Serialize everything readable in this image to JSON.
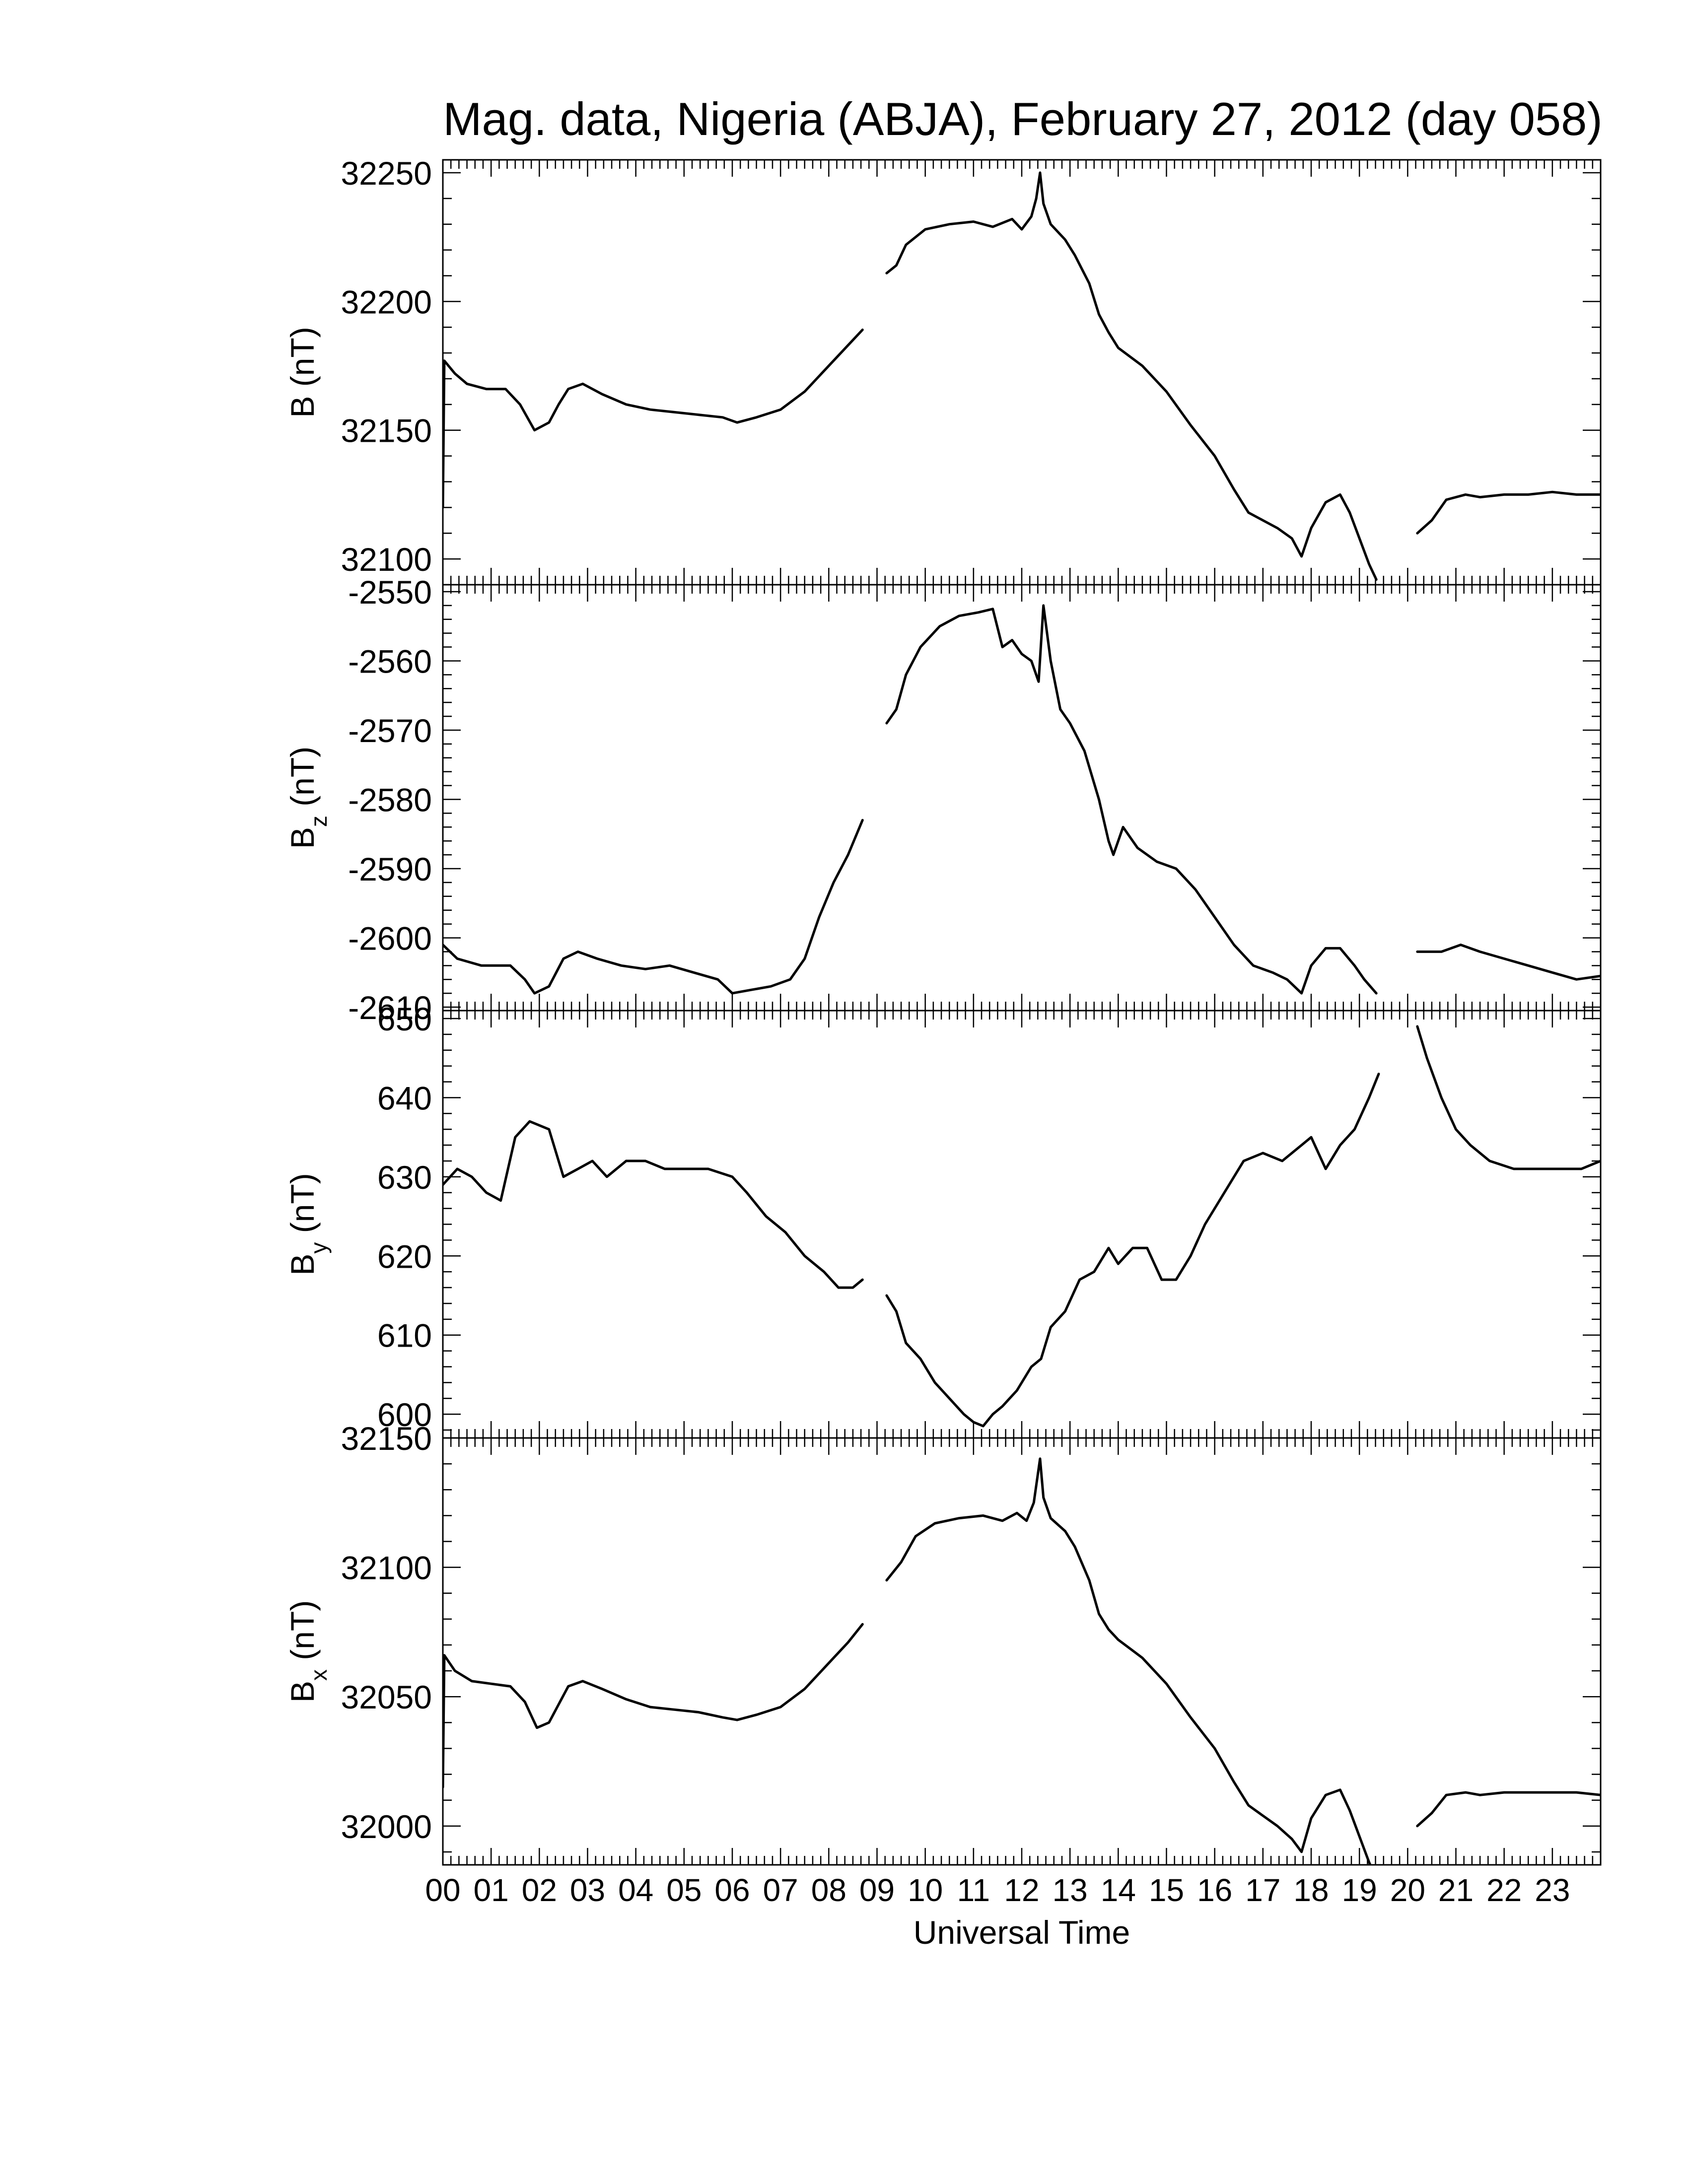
{
  "title": "Mag. data, Nigeria (ABJA), February 27, 2012 (day 058)",
  "xlabel": "Universal Time",
  "x_tick_labels": [
    "00",
    "01",
    "02",
    "03",
    "04",
    "05",
    "06",
    "07",
    "08",
    "09",
    "10",
    "11",
    "12",
    "13",
    "14",
    "15",
    "16",
    "17",
    "18",
    "19",
    "20",
    "21",
    "22",
    "23"
  ],
  "colors": {
    "line": "#000000",
    "axes": "#000000",
    "background": "#ffffff"
  },
  "chart_data": [
    {
      "type": "line",
      "panel": "B",
      "ylabel": "B (nT)",
      "ylabel_main": "B",
      "ylabel_sub": "",
      "ylabel_unit": " (nT)",
      "xlim": [
        0,
        24
      ],
      "ylim": [
        32090,
        32255
      ],
      "yticks": [
        32100,
        32150,
        32200,
        32250
      ],
      "segments": [
        [
          [
            0.0,
            32120
          ],
          [
            0.03,
            32177
          ],
          [
            0.25,
            32172
          ],
          [
            0.5,
            32168
          ],
          [
            0.9,
            32166
          ],
          [
            1.3,
            32166
          ],
          [
            1.6,
            32160
          ],
          [
            1.9,
            32150
          ],
          [
            2.2,
            32153
          ],
          [
            2.4,
            32160
          ],
          [
            2.6,
            32166
          ],
          [
            2.9,
            32168
          ],
          [
            3.3,
            32164
          ],
          [
            3.8,
            32160
          ],
          [
            4.3,
            32158
          ],
          [
            4.8,
            32157
          ],
          [
            5.3,
            32156
          ],
          [
            5.8,
            32155
          ],
          [
            6.1,
            32153
          ],
          [
            6.5,
            32155
          ],
          [
            7.0,
            32158
          ],
          [
            7.5,
            32165
          ],
          [
            8.0,
            32175
          ],
          [
            8.4,
            32183
          ],
          [
            8.7,
            32189
          ]
        ],
        [
          [
            9.2,
            32211
          ],
          [
            9.4,
            32214
          ],
          [
            9.6,
            32222
          ],
          [
            10.0,
            32228
          ],
          [
            10.5,
            32230
          ],
          [
            11.0,
            32231
          ],
          [
            11.4,
            32229
          ],
          [
            11.8,
            32232
          ],
          [
            12.0,
            32228
          ],
          [
            12.2,
            32233
          ],
          [
            12.3,
            32240
          ],
          [
            12.38,
            32250
          ],
          [
            12.45,
            32238
          ],
          [
            12.6,
            32230
          ],
          [
            12.9,
            32224
          ],
          [
            13.1,
            32218
          ],
          [
            13.4,
            32207
          ],
          [
            13.6,
            32195
          ],
          [
            13.8,
            32188
          ],
          [
            14.0,
            32182
          ],
          [
            14.5,
            32175
          ],
          [
            15.0,
            32165
          ],
          [
            15.5,
            32152
          ],
          [
            16.0,
            32140
          ],
          [
            16.4,
            32127
          ],
          [
            16.7,
            32118
          ],
          [
            17.0,
            32115
          ],
          [
            17.3,
            32112
          ],
          [
            17.6,
            32108
          ],
          [
            17.8,
            32101
          ],
          [
            18.0,
            32112
          ],
          [
            18.3,
            32122
          ],
          [
            18.6,
            32125
          ],
          [
            18.8,
            32118
          ],
          [
            19.0,
            32108
          ],
          [
            19.2,
            32098
          ],
          [
            19.35,
            32092
          ]
        ],
        [
          [
            20.2,
            32110
          ],
          [
            20.5,
            32115
          ],
          [
            20.8,
            32123
          ],
          [
            21.2,
            32125
          ],
          [
            21.5,
            32124
          ],
          [
            22.0,
            32125
          ],
          [
            22.5,
            32125
          ],
          [
            23.0,
            32126
          ],
          [
            23.5,
            32125
          ],
          [
            24.0,
            32125
          ]
        ]
      ]
    },
    {
      "type": "line",
      "panel": "Bz",
      "ylabel": "Bz (nT)",
      "ylabel_main": "B",
      "ylabel_sub": "z",
      "ylabel_unit": " (nT)",
      "xlim": [
        0,
        24
      ],
      "ylim": [
        -2610.5,
        -2549
      ],
      "yticks": [
        -2610,
        -2600,
        -2590,
        -2580,
        -2570,
        -2560,
        -2550
      ],
      "segments": [
        [
          [
            0.0,
            -2601
          ],
          [
            0.3,
            -2603
          ],
          [
            0.8,
            -2604
          ],
          [
            1.4,
            -2604
          ],
          [
            1.7,
            -2606
          ],
          [
            1.9,
            -2608
          ],
          [
            2.2,
            -2607
          ],
          [
            2.5,
            -2603
          ],
          [
            2.8,
            -2602
          ],
          [
            3.2,
            -2603
          ],
          [
            3.7,
            -2604
          ],
          [
            4.2,
            -2604.5
          ],
          [
            4.7,
            -2604
          ],
          [
            5.2,
            -2605
          ],
          [
            5.7,
            -2606
          ],
          [
            6.0,
            -2608
          ],
          [
            6.4,
            -2607.5
          ],
          [
            6.8,
            -2607
          ],
          [
            7.2,
            -2606
          ],
          [
            7.5,
            -2603
          ],
          [
            7.8,
            -2597
          ],
          [
            8.1,
            -2592
          ],
          [
            8.4,
            -2588
          ],
          [
            8.7,
            -2583
          ]
        ],
        [
          [
            9.2,
            -2569
          ],
          [
            9.4,
            -2567
          ],
          [
            9.6,
            -2562
          ],
          [
            9.9,
            -2558
          ],
          [
            10.3,
            -2555
          ],
          [
            10.7,
            -2553.5
          ],
          [
            11.1,
            -2553
          ],
          [
            11.4,
            -2552.5
          ],
          [
            11.6,
            -2558
          ],
          [
            11.8,
            -2557
          ],
          [
            12.0,
            -2559
          ],
          [
            12.2,
            -2560
          ],
          [
            12.35,
            -2563
          ],
          [
            12.45,
            -2552
          ],
          [
            12.6,
            -2560
          ],
          [
            12.8,
            -2567
          ],
          [
            13.0,
            -2569
          ],
          [
            13.3,
            -2573
          ],
          [
            13.6,
            -2580
          ],
          [
            13.8,
            -2586
          ],
          [
            13.9,
            -2588
          ],
          [
            14.1,
            -2584
          ],
          [
            14.4,
            -2587
          ],
          [
            14.8,
            -2589
          ],
          [
            15.2,
            -2590
          ],
          [
            15.6,
            -2593
          ],
          [
            16.0,
            -2597
          ],
          [
            16.4,
            -2601
          ],
          [
            16.8,
            -2604
          ],
          [
            17.2,
            -2605
          ],
          [
            17.5,
            -2606
          ],
          [
            17.8,
            -2608
          ],
          [
            18.0,
            -2604
          ],
          [
            18.3,
            -2601.5
          ],
          [
            18.6,
            -2601.5
          ],
          [
            18.9,
            -2604
          ],
          [
            19.1,
            -2606
          ],
          [
            19.35,
            -2608
          ]
        ],
        [
          [
            20.2,
            -2602
          ],
          [
            20.7,
            -2602
          ],
          [
            21.1,
            -2601
          ],
          [
            21.5,
            -2602
          ],
          [
            22.0,
            -2603
          ],
          [
            22.5,
            -2604
          ],
          [
            23.0,
            -2605
          ],
          [
            23.5,
            -2606
          ],
          [
            24.0,
            -2605.5
          ]
        ]
      ]
    },
    {
      "type": "line",
      "panel": "By",
      "ylabel": "By (nT)",
      "ylabel_main": "B",
      "ylabel_sub": "y",
      "ylabel_unit": " (nT)",
      "xlim": [
        0,
        24
      ],
      "ylim": [
        597,
        651
      ],
      "yticks": [
        600,
        610,
        620,
        630,
        640,
        650
      ],
      "segments": [
        [
          [
            0.0,
            629
          ],
          [
            0.3,
            631
          ],
          [
            0.6,
            630
          ],
          [
            0.9,
            628
          ],
          [
            1.2,
            627
          ],
          [
            1.5,
            635
          ],
          [
            1.8,
            637
          ],
          [
            2.2,
            636
          ],
          [
            2.5,
            630
          ],
          [
            2.8,
            631
          ],
          [
            3.1,
            632
          ],
          [
            3.4,
            630
          ],
          [
            3.8,
            632
          ],
          [
            4.2,
            632
          ],
          [
            4.6,
            631
          ],
          [
            5.0,
            631
          ],
          [
            5.5,
            631
          ],
          [
            6.0,
            630
          ],
          [
            6.3,
            628
          ],
          [
            6.7,
            625
          ],
          [
            7.1,
            623
          ],
          [
            7.5,
            620
          ],
          [
            7.9,
            618
          ],
          [
            8.2,
            616
          ],
          [
            8.5,
            616
          ],
          [
            8.7,
            617
          ]
        ],
        [
          [
            9.2,
            615
          ],
          [
            9.4,
            613
          ],
          [
            9.6,
            609
          ],
          [
            9.9,
            607
          ],
          [
            10.2,
            604
          ],
          [
            10.5,
            602
          ],
          [
            10.8,
            600
          ],
          [
            11.0,
            599
          ],
          [
            11.2,
            598.5
          ],
          [
            11.4,
            600
          ],
          [
            11.6,
            601
          ],
          [
            11.9,
            603
          ],
          [
            12.2,
            606
          ],
          [
            12.4,
            607
          ],
          [
            12.6,
            611
          ],
          [
            12.9,
            613
          ],
          [
            13.2,
            617
          ],
          [
            13.5,
            618
          ],
          [
            13.8,
            621
          ],
          [
            14.0,
            619
          ],
          [
            14.3,
            621
          ],
          [
            14.6,
            621
          ],
          [
            14.9,
            617
          ],
          [
            15.2,
            617
          ],
          [
            15.5,
            620
          ],
          [
            15.8,
            624
          ],
          [
            16.2,
            628
          ],
          [
            16.6,
            632
          ],
          [
            17.0,
            633
          ],
          [
            17.4,
            632
          ],
          [
            17.8,
            634
          ],
          [
            18.0,
            635
          ],
          [
            18.3,
            631
          ],
          [
            18.6,
            634
          ],
          [
            18.9,
            636
          ],
          [
            19.2,
            640
          ],
          [
            19.4,
            643
          ]
        ],
        [
          [
            20.2,
            649
          ],
          [
            20.4,
            645
          ],
          [
            20.7,
            640
          ],
          [
            21.0,
            636
          ],
          [
            21.3,
            634
          ],
          [
            21.7,
            632
          ],
          [
            22.2,
            631
          ],
          [
            22.7,
            631
          ],
          [
            23.2,
            631
          ],
          [
            23.6,
            631
          ],
          [
            24.0,
            632
          ]
        ]
      ]
    },
    {
      "type": "line",
      "panel": "Bx",
      "ylabel": "Bx (nT)",
      "ylabel_main": "B",
      "ylabel_sub": "x",
      "ylabel_unit": " (nT)",
      "xlim": [
        0,
        24
      ],
      "ylim": [
        31985,
        32150
      ],
      "yticks": [
        32000,
        32050,
        32100,
        32150
      ],
      "segments": [
        [
          [
            0.0,
            32015
          ],
          [
            0.03,
            32066
          ],
          [
            0.25,
            32060
          ],
          [
            0.6,
            32056
          ],
          [
            1.0,
            32055
          ],
          [
            1.4,
            32054
          ],
          [
            1.7,
            32048
          ],
          [
            1.95,
            32038
          ],
          [
            2.2,
            32040
          ],
          [
            2.4,
            32047
          ],
          [
            2.6,
            32054
          ],
          [
            2.9,
            32056
          ],
          [
            3.3,
            32053
          ],
          [
            3.8,
            32049
          ],
          [
            4.3,
            32046
          ],
          [
            4.8,
            32045
          ],
          [
            5.3,
            32044
          ],
          [
            5.8,
            32042
          ],
          [
            6.1,
            32041
          ],
          [
            6.5,
            32043
          ],
          [
            7.0,
            32046
          ],
          [
            7.5,
            32053
          ],
          [
            8.0,
            32063
          ],
          [
            8.4,
            32071
          ],
          [
            8.7,
            32078
          ]
        ],
        [
          [
            9.2,
            32095
          ],
          [
            9.5,
            32102
          ],
          [
            9.8,
            32112
          ],
          [
            10.2,
            32117
          ],
          [
            10.7,
            32119
          ],
          [
            11.2,
            32120
          ],
          [
            11.6,
            32118
          ],
          [
            11.9,
            32121
          ],
          [
            12.1,
            32118
          ],
          [
            12.25,
            32125
          ],
          [
            12.38,
            32142
          ],
          [
            12.45,
            32127
          ],
          [
            12.6,
            32119
          ],
          [
            12.9,
            32114
          ],
          [
            13.1,
            32108
          ],
          [
            13.4,
            32095
          ],
          [
            13.6,
            32082
          ],
          [
            13.8,
            32076
          ],
          [
            14.0,
            32072
          ],
          [
            14.5,
            32065
          ],
          [
            15.0,
            32055
          ],
          [
            15.5,
            32042
          ],
          [
            16.0,
            32030
          ],
          [
            16.4,
            32017
          ],
          [
            16.7,
            32008
          ],
          [
            17.0,
            32004
          ],
          [
            17.3,
            32000
          ],
          [
            17.6,
            31995
          ],
          [
            17.8,
            31990
          ],
          [
            18.0,
            32003
          ],
          [
            18.3,
            32012
          ],
          [
            18.6,
            32014
          ],
          [
            18.8,
            32006
          ],
          [
            19.0,
            31996
          ],
          [
            19.2,
            31986
          ],
          [
            19.35,
            31980
          ]
        ],
        [
          [
            20.2,
            32000
          ],
          [
            20.5,
            32005
          ],
          [
            20.8,
            32012
          ],
          [
            21.2,
            32013
          ],
          [
            21.5,
            32012
          ],
          [
            22.0,
            32013
          ],
          [
            22.5,
            32013
          ],
          [
            23.0,
            32013
          ],
          [
            23.5,
            32013
          ],
          [
            24.0,
            32012
          ]
        ]
      ]
    }
  ]
}
